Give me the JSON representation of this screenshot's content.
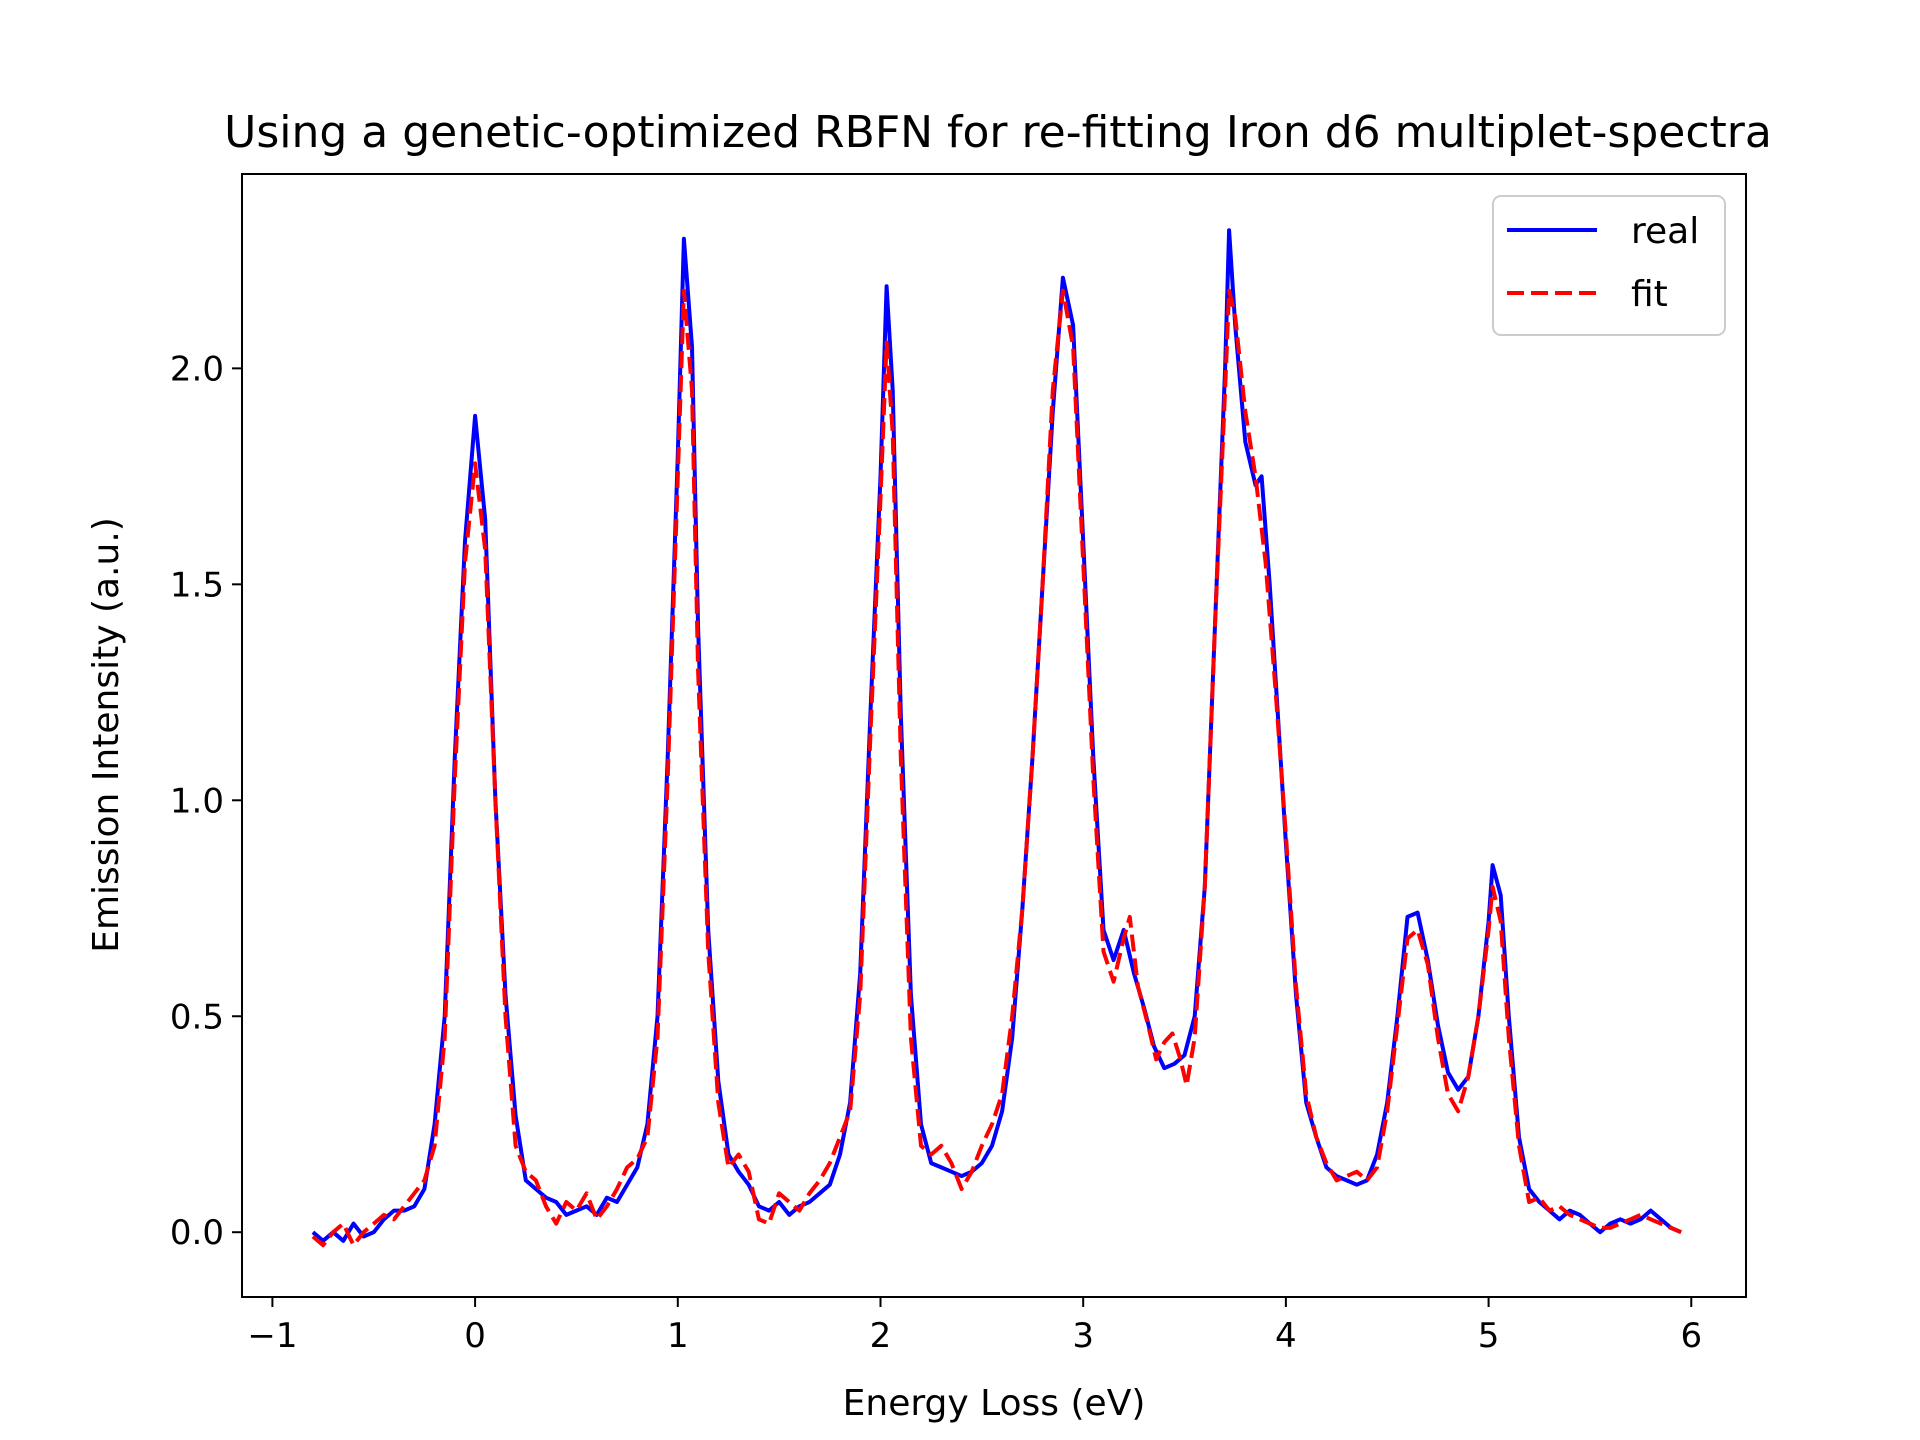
{
  "chart_data": {
    "type": "line",
    "title": "Using a genetic-optimized RBFN for re-fitting Iron d6 multiplet-spectra",
    "xlabel": "Energy Loss (eV)",
    "ylabel": "Emission Intensity (a.u.)",
    "xlim": [
      -1.15,
      6.27
    ],
    "ylim": [
      -0.15,
      2.45
    ],
    "xticks": [
      -1,
      0,
      1,
      2,
      3,
      4,
      5,
      6
    ],
    "xtick_labels": [
      "−1",
      "0",
      "1",
      "2",
      "3",
      "4",
      "5",
      "6"
    ],
    "yticks": [
      0.0,
      0.5,
      1.0,
      1.5,
      2.0
    ],
    "ytick_labels": [
      "0.0",
      "0.5",
      "1.0",
      "1.5",
      "2.0"
    ],
    "grid": false,
    "legend_position": "top-right",
    "series": [
      {
        "name": "real",
        "color": "#0000ff",
        "style": "solid",
        "points": [
          [
            -0.8,
            0.0
          ],
          [
            -0.75,
            -0.02
          ],
          [
            -0.7,
            0.0
          ],
          [
            -0.65,
            -0.02
          ],
          [
            -0.6,
            0.02
          ],
          [
            -0.55,
            -0.01
          ],
          [
            -0.5,
            0.0
          ],
          [
            -0.45,
            0.03
          ],
          [
            -0.4,
            0.05
          ],
          [
            -0.35,
            0.05
          ],
          [
            -0.3,
            0.06
          ],
          [
            -0.25,
            0.1
          ],
          [
            -0.2,
            0.25
          ],
          [
            -0.15,
            0.5
          ],
          [
            -0.1,
            1.1
          ],
          [
            -0.05,
            1.6
          ],
          [
            0.0,
            1.89
          ],
          [
            0.05,
            1.65
          ],
          [
            0.1,
            1.0
          ],
          [
            0.15,
            0.55
          ],
          [
            0.2,
            0.27
          ],
          [
            0.25,
            0.12
          ],
          [
            0.3,
            0.1
          ],
          [
            0.35,
            0.08
          ],
          [
            0.4,
            0.07
          ],
          [
            0.45,
            0.04
          ],
          [
            0.5,
            0.05
          ],
          [
            0.55,
            0.06
          ],
          [
            0.6,
            0.04
          ],
          [
            0.65,
            0.08
          ],
          [
            0.7,
            0.07
          ],
          [
            0.75,
            0.11
          ],
          [
            0.8,
            0.15
          ],
          [
            0.85,
            0.25
          ],
          [
            0.9,
            0.5
          ],
          [
            0.95,
            1.1
          ],
          [
            1.0,
            1.8
          ],
          [
            1.03,
            2.3
          ],
          [
            1.07,
            2.05
          ],
          [
            1.1,
            1.4
          ],
          [
            1.15,
            0.7
          ],
          [
            1.2,
            0.35
          ],
          [
            1.25,
            0.18
          ],
          [
            1.3,
            0.14
          ],
          [
            1.35,
            0.11
          ],
          [
            1.4,
            0.06
          ],
          [
            1.45,
            0.05
          ],
          [
            1.5,
            0.07
          ],
          [
            1.55,
            0.04
          ],
          [
            1.6,
            0.06
          ],
          [
            1.65,
            0.07
          ],
          [
            1.7,
            0.09
          ],
          [
            1.75,
            0.11
          ],
          [
            1.8,
            0.18
          ],
          [
            1.85,
            0.3
          ],
          [
            1.9,
            0.6
          ],
          [
            1.95,
            1.2
          ],
          [
            2.0,
            1.75
          ],
          [
            2.03,
            2.19
          ],
          [
            2.06,
            1.95
          ],
          [
            2.1,
            1.2
          ],
          [
            2.15,
            0.55
          ],
          [
            2.2,
            0.25
          ],
          [
            2.25,
            0.16
          ],
          [
            2.3,
            0.15
          ],
          [
            2.35,
            0.14
          ],
          [
            2.4,
            0.13
          ],
          [
            2.45,
            0.14
          ],
          [
            2.5,
            0.16
          ],
          [
            2.55,
            0.2
          ],
          [
            2.6,
            0.28
          ],
          [
            2.65,
            0.45
          ],
          [
            2.7,
            0.75
          ],
          [
            2.75,
            1.1
          ],
          [
            2.8,
            1.5
          ],
          [
            2.85,
            1.9
          ],
          [
            2.9,
            2.21
          ],
          [
            2.95,
            2.1
          ],
          [
            3.0,
            1.6
          ],
          [
            3.05,
            1.1
          ],
          [
            3.1,
            0.7
          ],
          [
            3.15,
            0.63
          ],
          [
            3.2,
            0.7
          ],
          [
            3.25,
            0.6
          ],
          [
            3.3,
            0.52
          ],
          [
            3.35,
            0.43
          ],
          [
            3.4,
            0.38
          ],
          [
            3.45,
            0.39
          ],
          [
            3.5,
            0.41
          ],
          [
            3.55,
            0.5
          ],
          [
            3.6,
            0.8
          ],
          [
            3.65,
            1.4
          ],
          [
            3.7,
            2.0
          ],
          [
            3.72,
            2.32
          ],
          [
            3.75,
            2.1
          ],
          [
            3.8,
            1.83
          ],
          [
            3.85,
            1.73
          ],
          [
            3.88,
            1.75
          ],
          [
            3.92,
            1.5
          ],
          [
            3.96,
            1.2
          ],
          [
            4.0,
            0.9
          ],
          [
            4.05,
            0.55
          ],
          [
            4.1,
            0.3
          ],
          [
            4.15,
            0.22
          ],
          [
            4.2,
            0.15
          ],
          [
            4.25,
            0.13
          ],
          [
            4.3,
            0.12
          ],
          [
            4.35,
            0.11
          ],
          [
            4.4,
            0.12
          ],
          [
            4.45,
            0.18
          ],
          [
            4.5,
            0.3
          ],
          [
            4.55,
            0.5
          ],
          [
            4.6,
            0.73
          ],
          [
            4.65,
            0.74
          ],
          [
            4.7,
            0.63
          ],
          [
            4.75,
            0.48
          ],
          [
            4.8,
            0.37
          ],
          [
            4.85,
            0.33
          ],
          [
            4.9,
            0.36
          ],
          [
            4.95,
            0.5
          ],
          [
            5.0,
            0.72
          ],
          [
            5.02,
            0.85
          ],
          [
            5.06,
            0.78
          ],
          [
            5.1,
            0.5
          ],
          [
            5.15,
            0.22
          ],
          [
            5.2,
            0.1
          ],
          [
            5.25,
            0.07
          ],
          [
            5.3,
            0.05
          ],
          [
            5.35,
            0.03
          ],
          [
            5.4,
            0.05
          ],
          [
            5.45,
            0.04
          ],
          [
            5.5,
            0.02
          ],
          [
            5.55,
            0.0
          ],
          [
            5.6,
            0.02
          ],
          [
            5.65,
            0.03
          ],
          [
            5.7,
            0.02
          ],
          [
            5.75,
            0.03
          ],
          [
            5.8,
            0.05
          ],
          [
            5.85,
            0.03
          ],
          [
            5.9,
            0.01
          ],
          [
            5.95,
            0.0
          ]
        ]
      },
      {
        "name": "fit",
        "color": "#ff0000",
        "style": "dashed",
        "points": [
          [
            -0.8,
            -0.01
          ],
          [
            -0.75,
            -0.03
          ],
          [
            -0.7,
            0.0
          ],
          [
            -0.65,
            0.02
          ],
          [
            -0.6,
            -0.03
          ],
          [
            -0.55,
            0.0
          ],
          [
            -0.5,
            0.02
          ],
          [
            -0.45,
            0.04
          ],
          [
            -0.4,
            0.03
          ],
          [
            -0.35,
            0.06
          ],
          [
            -0.3,
            0.09
          ],
          [
            -0.25,
            0.12
          ],
          [
            -0.2,
            0.2
          ],
          [
            -0.15,
            0.45
          ],
          [
            -0.1,
            1.05
          ],
          [
            -0.05,
            1.55
          ],
          [
            0.0,
            1.78
          ],
          [
            0.05,
            1.58
          ],
          [
            0.1,
            1.0
          ],
          [
            0.15,
            0.5
          ],
          [
            0.2,
            0.2
          ],
          [
            0.25,
            0.14
          ],
          [
            0.3,
            0.12
          ],
          [
            0.35,
            0.06
          ],
          [
            0.4,
            0.02
          ],
          [
            0.45,
            0.07
          ],
          [
            0.5,
            0.05
          ],
          [
            0.55,
            0.09
          ],
          [
            0.6,
            0.03
          ],
          [
            0.65,
            0.06
          ],
          [
            0.7,
            0.1
          ],
          [
            0.75,
            0.15
          ],
          [
            0.8,
            0.17
          ],
          [
            0.85,
            0.22
          ],
          [
            0.9,
            0.45
          ],
          [
            0.95,
            1.05
          ],
          [
            1.0,
            1.75
          ],
          [
            1.03,
            2.18
          ],
          [
            1.07,
            1.95
          ],
          [
            1.1,
            1.3
          ],
          [
            1.15,
            0.65
          ],
          [
            1.2,
            0.3
          ],
          [
            1.25,
            0.15
          ],
          [
            1.3,
            0.18
          ],
          [
            1.35,
            0.14
          ],
          [
            1.4,
            0.03
          ],
          [
            1.45,
            0.02
          ],
          [
            1.5,
            0.09
          ],
          [
            1.55,
            0.07
          ],
          [
            1.6,
            0.05
          ],
          [
            1.65,
            0.09
          ],
          [
            1.7,
            0.12
          ],
          [
            1.75,
            0.16
          ],
          [
            1.8,
            0.22
          ],
          [
            1.85,
            0.28
          ],
          [
            1.9,
            0.55
          ],
          [
            1.95,
            1.15
          ],
          [
            2.0,
            1.7
          ],
          [
            2.03,
            2.06
          ],
          [
            2.06,
            1.85
          ],
          [
            2.1,
            1.1
          ],
          [
            2.15,
            0.45
          ],
          [
            2.2,
            0.2
          ],
          [
            2.25,
            0.18
          ],
          [
            2.3,
            0.2
          ],
          [
            2.35,
            0.16
          ],
          [
            2.4,
            0.1
          ],
          [
            2.45,
            0.14
          ],
          [
            2.5,
            0.2
          ],
          [
            2.55,
            0.25
          ],
          [
            2.6,
            0.32
          ],
          [
            2.65,
            0.5
          ],
          [
            2.7,
            0.75
          ],
          [
            2.75,
            1.1
          ],
          [
            2.8,
            1.5
          ],
          [
            2.85,
            1.95
          ],
          [
            2.9,
            2.18
          ],
          [
            2.95,
            2.05
          ],
          [
            3.0,
            1.55
          ],
          [
            3.05,
            1.05
          ],
          [
            3.1,
            0.65
          ],
          [
            3.15,
            0.58
          ],
          [
            3.2,
            0.68
          ],
          [
            3.23,
            0.73
          ],
          [
            3.27,
            0.57
          ],
          [
            3.32,
            0.48
          ],
          [
            3.36,
            0.4
          ],
          [
            3.4,
            0.44
          ],
          [
            3.44,
            0.46
          ],
          [
            3.48,
            0.4
          ],
          [
            3.51,
            0.34
          ],
          [
            3.55,
            0.45
          ],
          [
            3.6,
            0.8
          ],
          [
            3.65,
            1.4
          ],
          [
            3.7,
            1.95
          ],
          [
            3.72,
            2.18
          ],
          [
            3.75,
            2.12
          ],
          [
            3.8,
            1.9
          ],
          [
            3.85,
            1.75
          ],
          [
            3.9,
            1.55
          ],
          [
            3.95,
            1.25
          ],
          [
            4.0,
            0.92
          ],
          [
            4.05,
            0.57
          ],
          [
            4.1,
            0.32
          ],
          [
            4.15,
            0.22
          ],
          [
            4.2,
            0.16
          ],
          [
            4.25,
            0.12
          ],
          [
            4.3,
            0.13
          ],
          [
            4.35,
            0.14
          ],
          [
            4.4,
            0.12
          ],
          [
            4.45,
            0.15
          ],
          [
            4.5,
            0.28
          ],
          [
            4.55,
            0.48
          ],
          [
            4.6,
            0.68
          ],
          [
            4.65,
            0.7
          ],
          [
            4.7,
            0.62
          ],
          [
            4.75,
            0.45
          ],
          [
            4.8,
            0.32
          ],
          [
            4.85,
            0.28
          ],
          [
            4.9,
            0.36
          ],
          [
            4.95,
            0.5
          ],
          [
            5.0,
            0.7
          ],
          [
            5.02,
            0.8
          ],
          [
            5.06,
            0.72
          ],
          [
            5.1,
            0.45
          ],
          [
            5.15,
            0.2
          ],
          [
            5.2,
            0.07
          ],
          [
            5.25,
            0.08
          ],
          [
            5.3,
            0.05
          ],
          [
            5.35,
            0.06
          ],
          [
            5.4,
            0.04
          ],
          [
            5.45,
            0.03
          ],
          [
            5.5,
            0.02
          ],
          [
            5.55,
            0.01
          ],
          [
            5.6,
            0.01
          ],
          [
            5.65,
            0.02
          ],
          [
            5.7,
            0.03
          ],
          [
            5.75,
            0.04
          ],
          [
            5.8,
            0.03
          ],
          [
            5.85,
            0.02
          ],
          [
            5.9,
            0.01
          ],
          [
            5.95,
            0.0
          ]
        ]
      }
    ]
  }
}
